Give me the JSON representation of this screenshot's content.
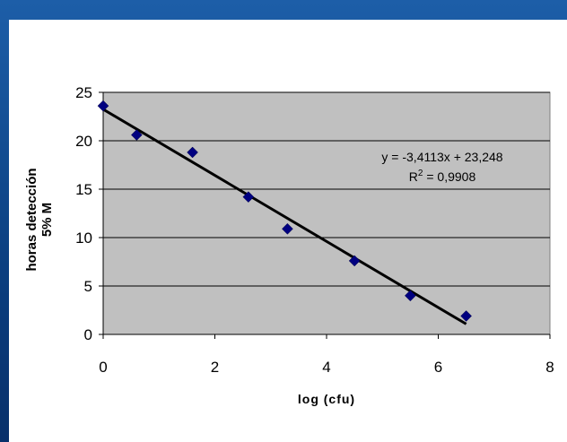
{
  "chart_data": {
    "type": "scatter",
    "x": [
      0,
      0.6,
      1.6,
      2.6,
      3.3,
      4.5,
      5.5,
      6.5
    ],
    "y": [
      23.6,
      20.6,
      18.8,
      14.2,
      10.9,
      7.6,
      4.0,
      1.9
    ],
    "trendline": {
      "slope": -3.4113,
      "intercept": 23.248,
      "x_range": [
        0,
        6.5
      ]
    },
    "equation": "y = -3,4113x + 23,248",
    "r2_label": "R",
    "r2_sup": "2",
    "r2_value": " = 0,9908",
    "xlabel": "log (cfu)",
    "ylabel_line1": "horas detección",
    "ylabel_line2": "5% M",
    "xlim": [
      0,
      8
    ],
    "ylim": [
      0,
      25
    ],
    "x_ticks": [
      "0",
      "2",
      "4",
      "6",
      "8"
    ],
    "y_ticks": [
      "0",
      "5",
      "10",
      "15",
      "20",
      "25"
    ],
    "grid": "horizontal",
    "marker_color": "#000080",
    "plot_background": "#c0c0c0",
    "line_color": "#000000"
  }
}
